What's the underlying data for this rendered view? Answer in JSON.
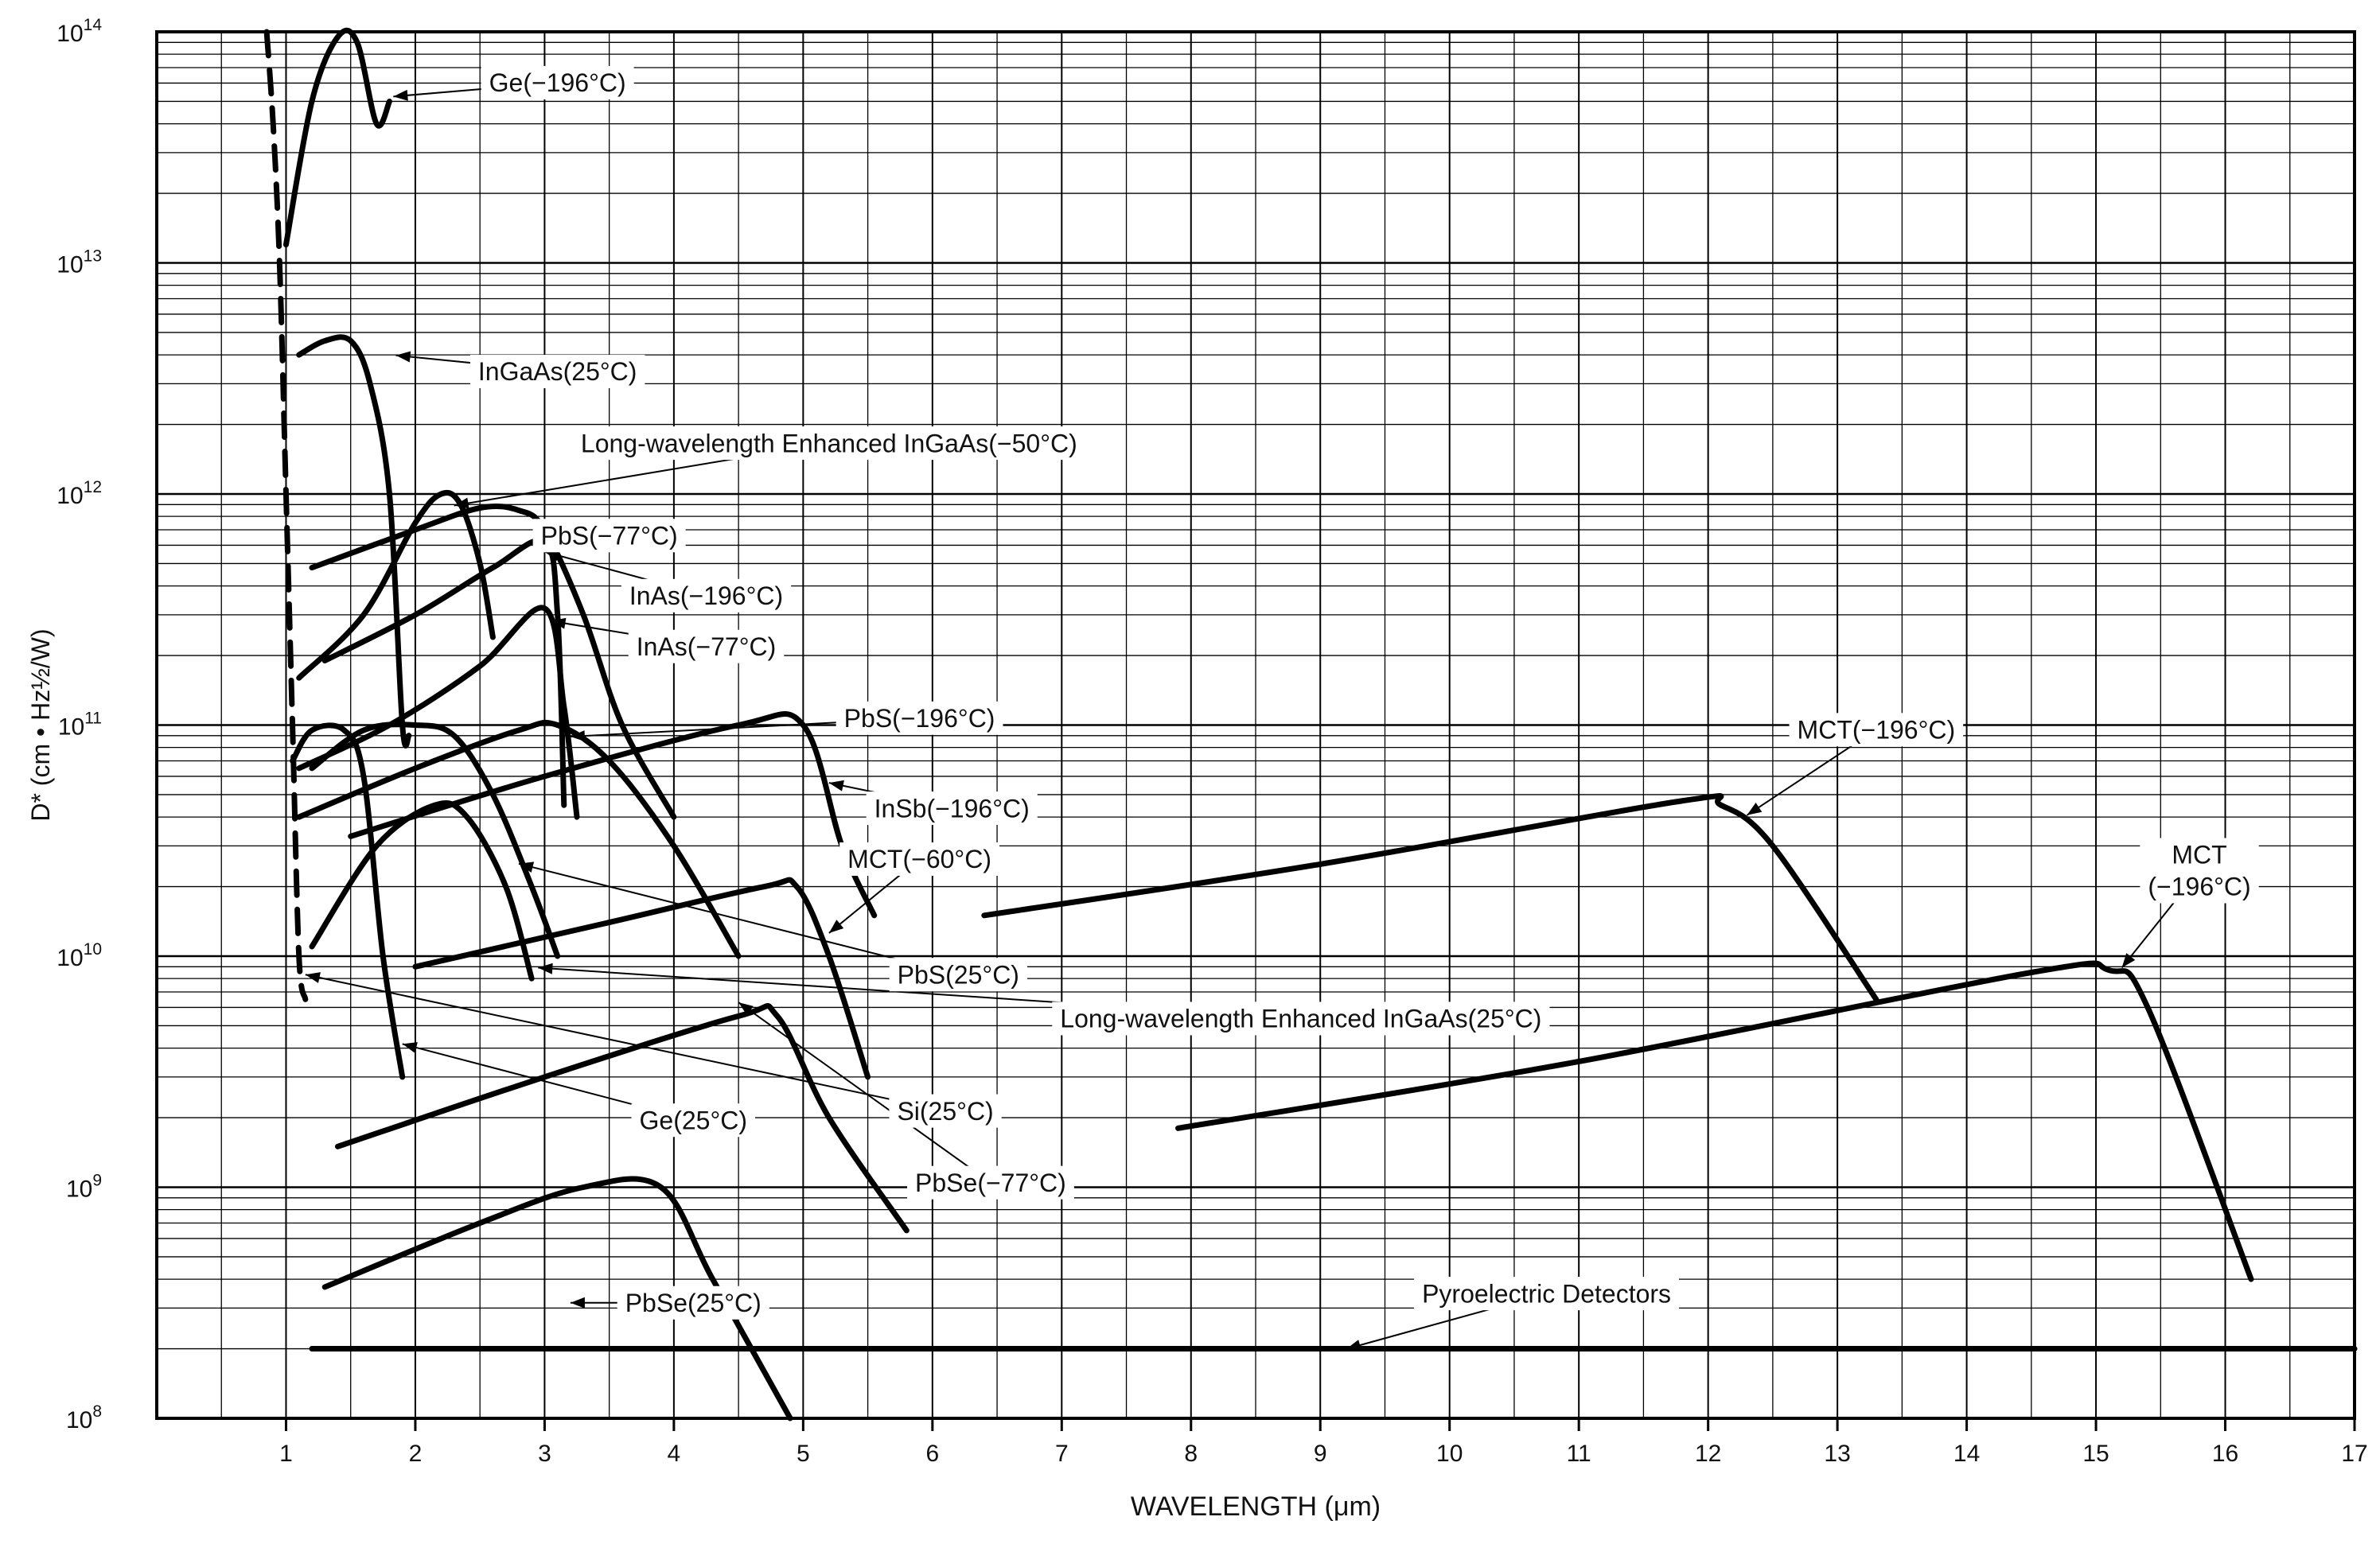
{
  "chart_data": {
    "type": "line",
    "title": "",
    "xlabel": "WAVELENGTH (μm)",
    "ylabel": "D* (cm • Hz½/W)",
    "xlim": [
      0,
      17
    ],
    "ylim": [
      100000000,
      100000000000000
    ],
    "yscale": "log",
    "grid": true,
    "legend": "none",
    "xticks": [
      "1",
      "2",
      "3",
      "4",
      "5",
      "6",
      "7",
      "8",
      "9",
      "10",
      "11",
      "12",
      "13",
      "14",
      "15",
      "16",
      "17"
    ],
    "yticks": [
      {
        "value": 100000000,
        "base": "10",
        "exp": "8"
      },
      {
        "value": 1000000000,
        "base": "10",
        "exp": "9"
      },
      {
        "value": 10000000000,
        "base": "10",
        "exp": "10"
      },
      {
        "value": 100000000000,
        "base": "10",
        "exp": "11"
      },
      {
        "value": 1000000000000,
        "base": "10",
        "exp": "12"
      },
      {
        "value": 10000000000000,
        "base": "10",
        "exp": "13"
      },
      {
        "value": 100000000000000,
        "base": "10",
        "exp": "14"
      }
    ],
    "series": [
      {
        "name": "Ge(−196°C)",
        "x": [
          1.0,
          1.2,
          1.4,
          1.55,
          1.7,
          1.8
        ],
        "y": [
          12000000000000.0,
          50000000000000.0,
          95000000000000.0,
          90000000000000.0,
          40000000000000.0,
          50000000000000.0
        ]
      },
      {
        "name": "Si(25°C)",
        "x": [
          0.85,
          0.9,
          0.95,
          1.0,
          1.05,
          1.1,
          1.15
        ],
        "y": [
          100000000000000.0,
          40000000000000.0,
          10000000000000.0,
          1000000000000.0,
          100000000000.0,
          10000000000.0,
          6500000000.0
        ],
        "dashed": true
      },
      {
        "name": "InGaAs(25°C)",
        "x": [
          1.1,
          1.3,
          1.5,
          1.65,
          1.8,
          1.9,
          1.95
        ],
        "y": [
          4000000000000.0,
          4600000000000.0,
          4600000000000.0,
          3000000000000.0,
          1000000000000.0,
          100000000000.0,
          90000000000.0
        ]
      },
      {
        "name": "Long-wavelength Enhanced InGaAs(−50°C)",
        "x": [
          1.1,
          1.6,
          2.0,
          2.2,
          2.35,
          2.5,
          2.6
        ],
        "y": [
          160000000000.0,
          300000000000.0,
          750000000000.0,
          1000000000000.0,
          900000000000.0,
          500000000000.0,
          240000000000.0
        ]
      },
      {
        "name": "PbS(−77°C)",
        "x": [
          1.2,
          2.0,
          2.5,
          2.8,
          3.0,
          3.3,
          3.6,
          4.0
        ],
        "y": [
          480000000000.0,
          700000000000.0,
          870000000000.0,
          850000000000.0,
          700000000000.0,
          300000000000.0,
          100000000000.0,
          40000000000.0
        ]
      },
      {
        "name": "InAs(−196°C)",
        "x": [
          1.3,
          2.0,
          2.6,
          3.0,
          3.1,
          3.15
        ],
        "y": [
          190000000000.0,
          300000000000.0,
          480000000000.0,
          620000000000.0,
          300000000000.0,
          45000000000.0
        ]
      },
      {
        "name": "InAs(−77°C)",
        "x": [
          1.1,
          1.8,
          2.5,
          3.0,
          3.15,
          3.25
        ],
        "y": [
          65000000000.0,
          100000000000.0,
          180000000000.0,
          320000000000.0,
          120000000000.0,
          40000000000.0
        ]
      },
      {
        "name": "PbS(−196°C)",
        "x": [
          1.1,
          2.0,
          2.8,
          3.1,
          3.5,
          4.0,
          4.5
        ],
        "y": [
          40000000000.0,
          65000000000.0,
          95000000000.0,
          100000000000.0,
          70000000000.0,
          30000000000.0,
          10000000000.0
        ]
      },
      {
        "name": "InSb(−196°C)",
        "x": [
          1.5,
          3.0,
          4.5,
          5.0,
          5.3,
          5.55
        ],
        "y": [
          33000000000.0,
          60000000000.0,
          100000000000.0,
          100000000000.0,
          30000000000.0,
          15000000000.0
        ]
      },
      {
        "name": "MCT(−60°C)",
        "x": [
          2.0,
          3.5,
          4.7,
          4.95,
          5.2,
          5.5
        ],
        "y": [
          9000000000.0,
          14000000000.0,
          20000000000.0,
          20000000000.0,
          10000000000.0,
          3000000000.0
        ]
      },
      {
        "name": "PbS(25°C)",
        "x": [
          1.2,
          1.6,
          2.0,
          2.3,
          2.6,
          2.9,
          3.1
        ],
        "y": [
          65000000000.0,
          95000000000.0,
          100000000000.0,
          90000000000.0,
          50000000000.0,
          20000000000.0,
          10000000000.0
        ]
      },
      {
        "name": "Long-wavelength Enhanced InGaAs(25°C)",
        "x": [
          1.2,
          1.7,
          2.15,
          2.4,
          2.7,
          2.9
        ],
        "y": [
          11000000000.0,
          30000000000.0,
          45000000000.0,
          40000000000.0,
          20000000000.0,
          8000000000.0
        ]
      },
      {
        "name": "Ge(25°C)",
        "x": [
          1.05,
          1.2,
          1.45,
          1.6,
          1.75,
          1.9
        ],
        "y": [
          70000000000.0,
          95000000000.0,
          95000000000.0,
          60000000000.0,
          10000000000.0,
          3000000000.0
        ]
      },
      {
        "name": "PbSe(−77°C)",
        "x": [
          1.4,
          3.0,
          4.5,
          4.8,
          5.2,
          5.8
        ],
        "y": [
          1500000000.0,
          3000000000.0,
          5500000000.0,
          5500000000.0,
          2000000000.0,
          650000000.0
        ]
      },
      {
        "name": "PbSe(25°C)",
        "x": [
          1.3,
          2.5,
          3.3,
          3.9,
          4.3,
          4.9
        ],
        "y": [
          370000000.0,
          700000000.0,
          1000000000.0,
          1000000000.0,
          400000000.0,
          100000000.0
        ]
      },
      {
        "name": "MCT(−196°C)",
        "x": [
          6.4,
          9.0,
          11.8,
          12.1,
          12.5,
          13.3
        ],
        "y": [
          15000000000.0,
          25000000000.0,
          47000000000.0,
          45000000000.0,
          30000000000.0,
          6500000000.0
        ]
      },
      {
        "name": "MCT (−196°C)",
        "x": [
          7.9,
          11.0,
          14.5,
          15.1,
          15.4,
          16.2
        ],
        "y": [
          1800000000.0,
          3500000000.0,
          8500000000.0,
          8700000000.0,
          6000000000.0,
          400000000.0
        ]
      },
      {
        "name": "Pyroelectric Detectors",
        "x": [
          1.2,
          17.0
        ],
        "y": [
          200000000.0,
          200000000.0
        ]
      }
    ],
    "annotations": [
      {
        "text": "Ge(−196°C)",
        "lines": [
          "Ge(−196°C)"
        ],
        "pos": [
          3.1,
          13.78
        ],
        "tip": [
          1.83,
          13.72
        ]
      },
      {
        "text": "InGaAs(25°C)",
        "lines": [
          "InGaAs(25°C)"
        ],
        "pos": [
          3.1,
          12.53
        ],
        "tip": [
          1.85,
          12.6
        ]
      },
      {
        "text": "Long-wavelength Enhanced InGaAs(−50°C)",
        "lines": [
          "Long-wavelength Enhanced InGaAs(−50°C)"
        ],
        "pos": [
          5.2,
          12.22
        ],
        "tip": [
          2.3,
          11.95
        ]
      },
      {
        "text": "PbS(−77°C)",
        "lines": [
          "PbS(−77°C)"
        ],
        "pos": [
          3.5,
          11.82
        ],
        "tip": [
          2.9,
          11.8
        ]
      },
      {
        "text": "InAs(−196°C)",
        "lines": [
          "InAs(−196°C)"
        ],
        "pos": [
          4.25,
          11.56
        ],
        "tip": [
          3.0,
          11.75
        ]
      },
      {
        "text": "InAs(−77°C)",
        "lines": [
          "InAs(−77°C)"
        ],
        "pos": [
          4.25,
          11.34
        ],
        "tip": [
          3.05,
          11.45
        ]
      },
      {
        "text": "PbS(−196°C)",
        "lines": [
          "PbS(−196°C)"
        ],
        "pos": [
          5.9,
          11.03
        ],
        "tip": [
          3.2,
          10.95
        ]
      },
      {
        "text": "InSb(−196°C)",
        "lines": [
          "InSb(−196°C)"
        ],
        "pos": [
          6.15,
          10.64
        ],
        "tip": [
          5.2,
          10.75
        ]
      },
      {
        "text": "MCT(−60°C)",
        "lines": [
          "MCT(−60°C)"
        ],
        "pos": [
          5.9,
          10.42
        ],
        "tip": [
          5.2,
          10.1
        ]
      },
      {
        "text": "PbS(25°C)",
        "lines": [
          "PbS(25°C)"
        ],
        "pos": [
          6.2,
          9.92
        ],
        "tip": [
          2.8,
          10.4
        ]
      },
      {
        "text": "Long-wavelength Enhanced InGaAs(25°C)",
        "lines": [
          "Long-wavelength Enhanced InGaAs(25°C)"
        ],
        "pos": [
          8.85,
          9.73
        ],
        "tip": [
          2.95,
          9.95
        ]
      },
      {
        "text": "Si(25°C)",
        "lines": [
          "Si(25°C)"
        ],
        "pos": [
          6.1,
          9.33
        ],
        "tip": [
          1.15,
          9.92
        ]
      },
      {
        "text": "Ge(25°C)",
        "lines": [
          "Ge(25°C)"
        ],
        "pos": [
          4.15,
          9.29
        ],
        "tip": [
          1.9,
          9.62
        ]
      },
      {
        "text": "PbSe(−77°C)",
        "lines": [
          "PbSe(−77°C)"
        ],
        "pos": [
          6.45,
          9.02
        ],
        "tip": [
          4.5,
          9.8
        ]
      },
      {
        "text": "PbSe(25°C)",
        "lines": [
          "PbSe(25°C)"
        ],
        "pos": [
          4.15,
          8.5
        ],
        "tip": [
          3.2,
          8.5
        ]
      },
      {
        "text": "MCT(−196°C)",
        "lines": [
          "MCT(−196°C)"
        ],
        "pos": [
          13.3,
          10.98
        ],
        "tip": [
          12.3,
          10.61
        ]
      },
      {
        "text": "MCT (−196°C)",
        "lines": [
          "MCT",
          "(−196°C)"
        ],
        "pos": [
          15.8,
          10.37
        ],
        "tip": [
          15.2,
          9.95
        ]
      },
      {
        "text": "Pyroelectric Detectors",
        "lines": [
          "Pyroelectric Detectors"
        ],
        "pos": [
          10.75,
          8.54
        ],
        "tip": [
          9.2,
          8.3
        ]
      }
    ]
  }
}
